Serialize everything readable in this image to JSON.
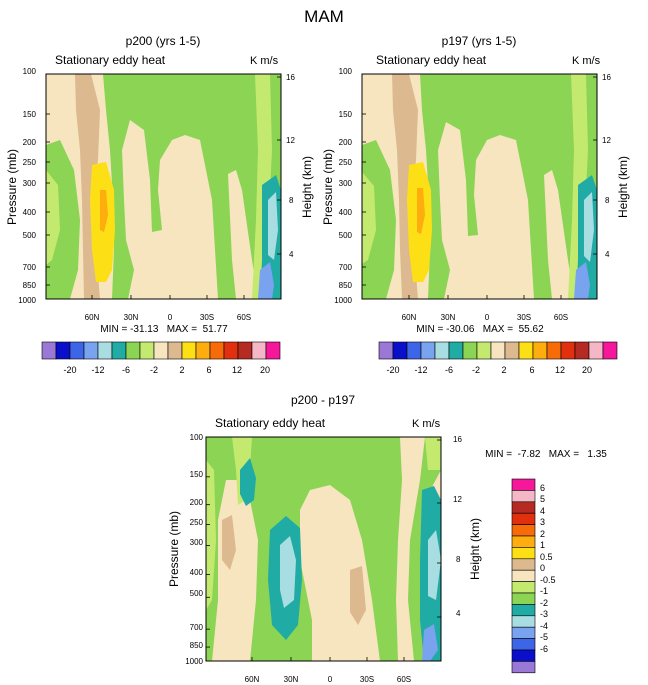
{
  "figure": {
    "title": "MAM"
  },
  "palettes": {
    "abs": [
      "#9a79d6",
      "#0a0fc9",
      "#3d65e8",
      "#79a2ef",
      "#a8dde2",
      "#20aca4",
      "#8bd454",
      "#c3ea6f",
      "#f6e5bf",
      "#ddb990",
      "#fddf16",
      "#fdad0d",
      "#f76b09",
      "#e0300d",
      "#b52a23",
      "#f5b6c6",
      "#f5189a"
    ],
    "diff": [
      "#9a79d6",
      "#0a0fc9",
      "#3d65e8",
      "#79a2ef",
      "#a8dde2",
      "#20aca4",
      "#8bd454",
      "#c3ea6f",
      "#f6e5bf",
      "#ddb990",
      "#fddf16",
      "#fdad0d",
      "#f76b09",
      "#e0300d",
      "#b52a23",
      "#f5b6c6",
      "#f5189a"
    ]
  },
  "chart_data": [
    {
      "type": "heatmap",
      "title": "p200 (yrs 1-5)",
      "left_label": "Stationary eddy heat",
      "right_label": "K m/s",
      "ylabel": "Pressure (mb)",
      "ylabel_right": "Height (km)",
      "yticks": [
        "100",
        "150",
        "200",
        "250",
        "300",
        "400",
        "500",
        "700",
        "850",
        "1000"
      ],
      "yticks_right": [
        "16",
        "12",
        "8",
        "4"
      ],
      "xticks": [
        "60N",
        "30N",
        "0",
        "30S",
        "60S"
      ],
      "min_max": "MIN = -31.13   MAX =  51.77",
      "colorbar_labels": [
        "-20",
        "-12",
        "-6",
        "-2",
        "2",
        "6",
        "12",
        "20"
      ]
    },
    {
      "type": "heatmap",
      "title": "p197 (yrs 1-5)",
      "left_label": "Stationary eddy heat",
      "right_label": "K m/s",
      "ylabel": "Pressure (mb)",
      "ylabel_right": "Height (km)",
      "yticks": [
        "100",
        "150",
        "200",
        "250",
        "300",
        "400",
        "500",
        "700",
        "850",
        "1000"
      ],
      "yticks_right": [
        "16",
        "12",
        "8",
        "4"
      ],
      "xticks": [
        "60N",
        "30N",
        "0",
        "30S",
        "60S"
      ],
      "min_max": "MIN = -30.06   MAX =  55.62",
      "colorbar_labels": [
        "-20",
        "-12",
        "-6",
        "-2",
        "2",
        "6",
        "12",
        "20"
      ]
    },
    {
      "type": "heatmap",
      "title": "p200 - p197",
      "left_label": "Stationary eddy heat",
      "right_label": "K m/s",
      "ylabel": "Pressure (mb)",
      "ylabel_right": "Height (km)",
      "yticks": [
        "100",
        "150",
        "200",
        "250",
        "300",
        "400",
        "500",
        "700",
        "850",
        "1000"
      ],
      "yticks_right": [
        "16",
        "12",
        "8",
        "4"
      ],
      "xticks": [
        "60N",
        "30N",
        "0",
        "30S",
        "60S"
      ],
      "min_max": "MIN =  -7.82   MAX =   1.35",
      "colorbar_labels": [
        "6",
        "5",
        "4",
        "3",
        "2",
        "1",
        "0.5",
        "0",
        "-0.5",
        "-1",
        "-2",
        "-3",
        "-4",
        "-5",
        "-6"
      ]
    }
  ]
}
